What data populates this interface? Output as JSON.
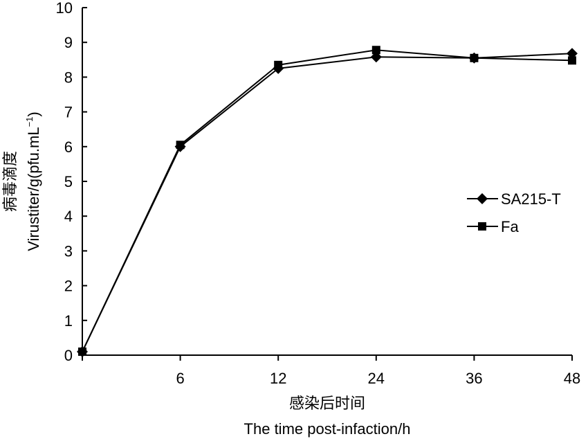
{
  "chart_data": {
    "type": "line",
    "categories": [
      "",
      "6",
      "12",
      "24",
      "36",
      "48"
    ],
    "series": [
      {
        "name": "SA215-T",
        "marker": "diamond",
        "values": [
          0.1,
          6.0,
          8.25,
          8.58,
          8.55,
          8.68
        ]
      },
      {
        "name": "Fa",
        "marker": "square",
        "values": [
          0.1,
          6.05,
          8.35,
          8.78,
          8.55,
          8.48
        ]
      }
    ],
    "y_ticks": [
      "0",
      "1",
      "2",
      "3",
      "4",
      "5",
      "6",
      "7",
      "8",
      "9",
      "10"
    ],
    "ylim": [
      0,
      10
    ],
    "ylabel_cn": "病毒滴度",
    "ylabel_en": "Virustiter/g(pfu.mL",
    "ylabel_sup": "−1",
    "ylabel_close": ")",
    "xlabel_cn": "感染后时间",
    "xlabel_en": "The time post-infaction/h",
    "legend_position": "right",
    "grid": false,
    "line_color": "#000000"
  }
}
